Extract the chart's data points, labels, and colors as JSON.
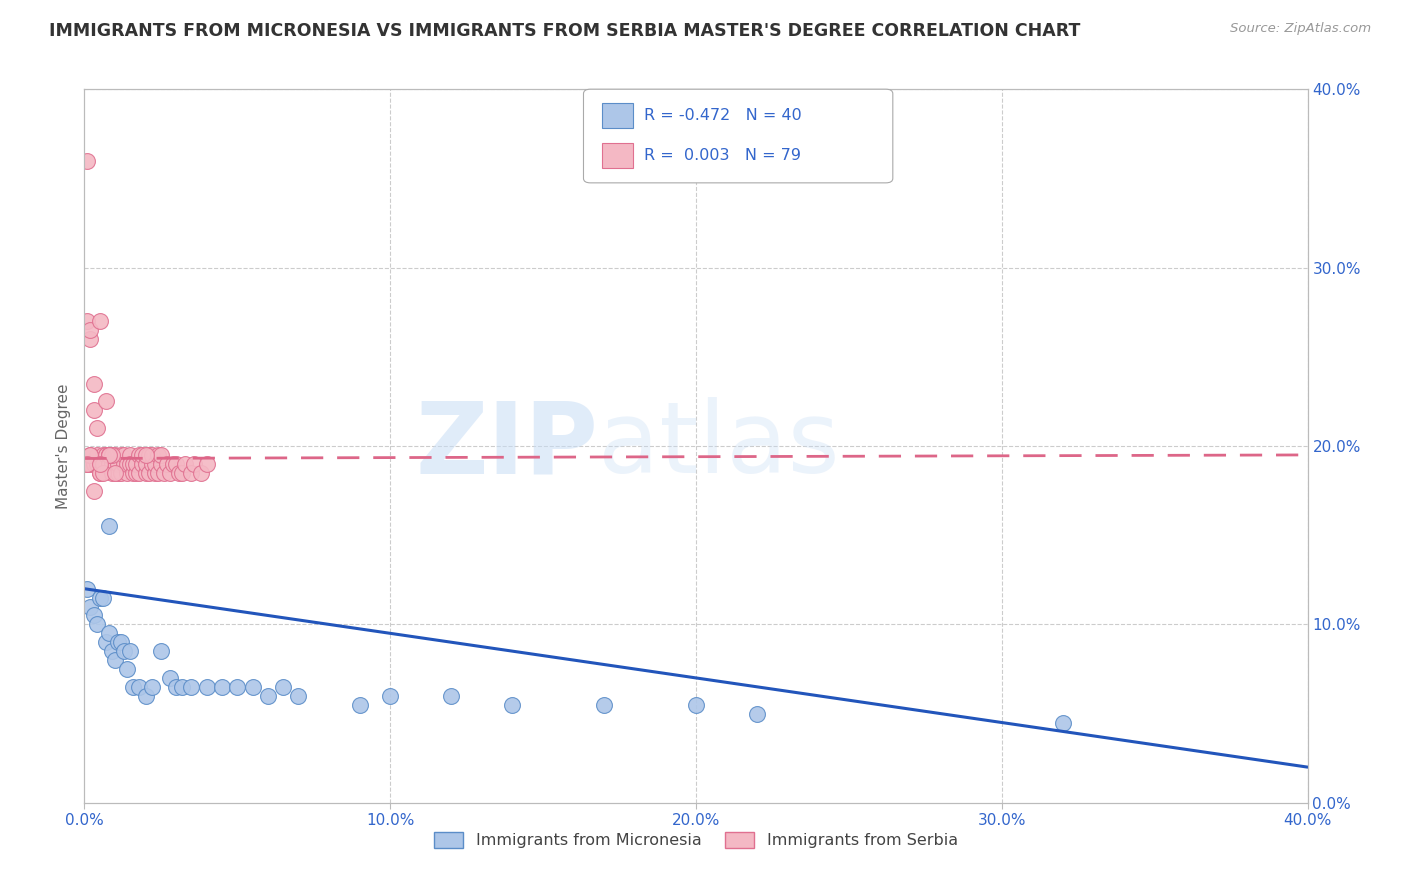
{
  "title": "IMMIGRANTS FROM MICRONESIA VS IMMIGRANTS FROM SERBIA MASTER'S DEGREE CORRELATION CHART",
  "source": "Source: ZipAtlas.com",
  "ylabel": "Master's Degree",
  "x_ticks": [
    0.0,
    0.1,
    0.2,
    0.3,
    0.4
  ],
  "y_ticks": [
    0.0,
    0.1,
    0.2,
    0.3,
    0.4
  ],
  "x_tick_labels": [
    "0.0%",
    "10.0%",
    "20.0%",
    "30.0%",
    "40.0%"
  ],
  "y_tick_labels_right": [
    "0.0%",
    "10.0%",
    "20.0%",
    "30.0%",
    "40.0%"
  ],
  "xlim": [
    0.0,
    0.4
  ],
  "ylim": [
    0.0,
    0.4
  ],
  "micronesia_color": "#adc6e8",
  "micronesia_edge": "#5b8dc8",
  "serbia_color": "#f4b8c4",
  "serbia_edge": "#e07090",
  "micronesia_R": -0.472,
  "micronesia_N": 40,
  "serbia_R": 0.003,
  "serbia_N": 79,
  "micronesia_line_color": "#2255bb",
  "serbia_line_color": "#dd6688",
  "watermark_zip": "ZIP",
  "watermark_atlas": "atlas",
  "background_color": "#ffffff",
  "grid_color": "#cccccc",
  "title_color": "#333333",
  "axis_label_color": "#3366cc",
  "micronesia_x": [
    0.001,
    0.002,
    0.003,
    0.004,
    0.005,
    0.006,
    0.007,
    0.008,
    0.009,
    0.01,
    0.011,
    0.012,
    0.013,
    0.014,
    0.015,
    0.016,
    0.018,
    0.02,
    0.022,
    0.025,
    0.028,
    0.03,
    0.032,
    0.035,
    0.04,
    0.045,
    0.05,
    0.055,
    0.06,
    0.065,
    0.07,
    0.09,
    0.1,
    0.12,
    0.14,
    0.17,
    0.2,
    0.22,
    0.32,
    0.008
  ],
  "micronesia_y": [
    0.12,
    0.11,
    0.105,
    0.1,
    0.115,
    0.115,
    0.09,
    0.095,
    0.085,
    0.08,
    0.09,
    0.09,
    0.085,
    0.075,
    0.085,
    0.065,
    0.065,
    0.06,
    0.065,
    0.085,
    0.07,
    0.065,
    0.065,
    0.065,
    0.065,
    0.065,
    0.065,
    0.065,
    0.06,
    0.065,
    0.06,
    0.055,
    0.06,
    0.06,
    0.055,
    0.055,
    0.055,
    0.05,
    0.045,
    0.155
  ],
  "serbia_x": [
    0.001,
    0.001,
    0.002,
    0.002,
    0.003,
    0.003,
    0.004,
    0.004,
    0.005,
    0.005,
    0.006,
    0.006,
    0.007,
    0.007,
    0.008,
    0.008,
    0.009,
    0.009,
    0.01,
    0.01,
    0.011,
    0.011,
    0.012,
    0.012,
    0.013,
    0.013,
    0.014,
    0.014,
    0.015,
    0.015,
    0.016,
    0.016,
    0.017,
    0.017,
    0.018,
    0.018,
    0.019,
    0.019,
    0.02,
    0.02,
    0.021,
    0.021,
    0.022,
    0.022,
    0.023,
    0.023,
    0.024,
    0.024,
    0.025,
    0.025,
    0.026,
    0.027,
    0.028,
    0.029,
    0.03,
    0.031,
    0.032,
    0.033,
    0.035,
    0.036,
    0.038,
    0.04,
    0.001,
    0.002,
    0.003,
    0.004,
    0.005,
    0.006,
    0.007,
    0.008,
    0.009,
    0.01,
    0.002,
    0.003,
    0.002,
    0.001,
    0.02,
    0.008,
    0.005
  ],
  "serbia_y": [
    0.36,
    0.19,
    0.26,
    0.19,
    0.22,
    0.19,
    0.195,
    0.19,
    0.185,
    0.185,
    0.195,
    0.19,
    0.195,
    0.195,
    0.19,
    0.195,
    0.185,
    0.19,
    0.195,
    0.19,
    0.185,
    0.19,
    0.195,
    0.185,
    0.19,
    0.195,
    0.185,
    0.19,
    0.195,
    0.19,
    0.185,
    0.19,
    0.185,
    0.19,
    0.195,
    0.185,
    0.19,
    0.195,
    0.185,
    0.19,
    0.195,
    0.185,
    0.19,
    0.195,
    0.185,
    0.19,
    0.195,
    0.185,
    0.19,
    0.195,
    0.185,
    0.19,
    0.185,
    0.19,
    0.19,
    0.185,
    0.185,
    0.19,
    0.185,
    0.19,
    0.185,
    0.19,
    0.27,
    0.265,
    0.235,
    0.21,
    0.27,
    0.185,
    0.225,
    0.195,
    0.195,
    0.185,
    0.195,
    0.175,
    0.195,
    0.19,
    0.195,
    0.195,
    0.19
  ],
  "micronesia_trend_x": [
    0.0,
    0.4
  ],
  "micronesia_trend_y": [
    0.12,
    0.02
  ],
  "serbia_trend_x": [
    0.0,
    0.4
  ],
  "serbia_trend_y": [
    0.193,
    0.195
  ]
}
